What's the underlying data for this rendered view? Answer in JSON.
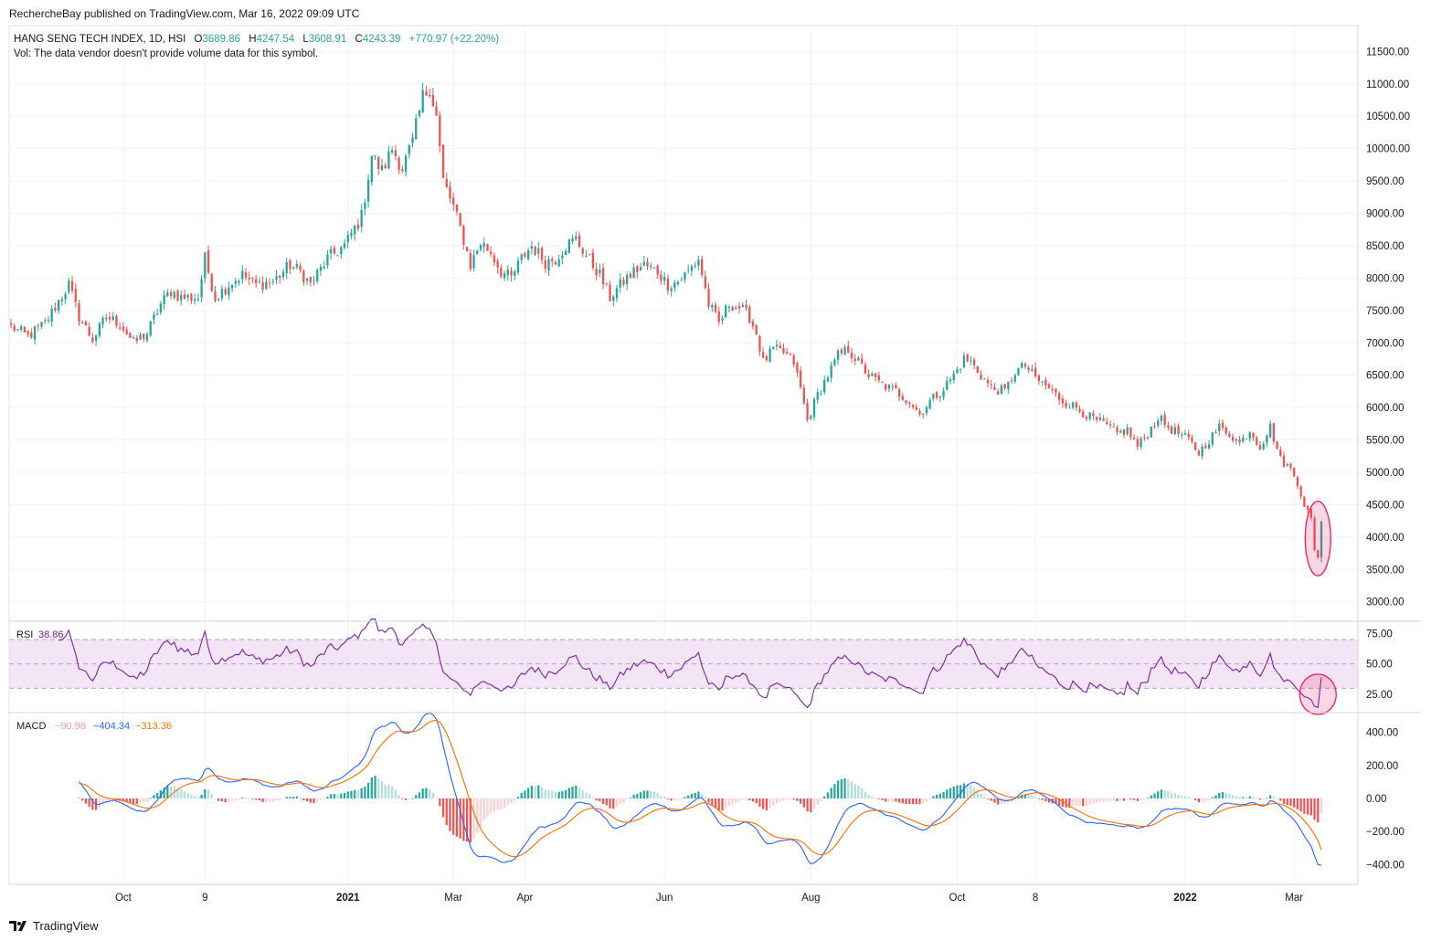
{
  "publisher_line": "RechercheBay published on TradingView.com, Mar 16, 2022 09:09 UTC",
  "brand": {
    "name": "TradingView",
    "logo_icon": "tradingview-logo-icon"
  },
  "colors": {
    "up": "#26a69a",
    "down": "#ef5350",
    "rsi_line": "#7b1fa2",
    "rsi_band": "#f3e5f5",
    "macd_line": "#2962ff",
    "signal_line": "#ff6d00",
    "hist_up_strong": "#26a69a",
    "hist_up_weak": "#b2dfdb",
    "hist_down_strong": "#ef5350",
    "hist_down_weak": "#ffcdd2",
    "highlight": "#e91e63"
  },
  "chart_data": [
    {
      "type": "candlestick",
      "symbol": "HANG SENG TECH INDEX",
      "interval": "1D",
      "exchange": "HSI",
      "legend": {
        "title": "HANG SENG TECH INDEX, 1D, HSI",
        "o_label": "O",
        "o": "3689.86",
        "h_label": "H",
        "h": "4247.54",
        "l_label": "L",
        "l": "3608.91",
        "c_label": "C",
        "c": "4243.39",
        "change": "+770.97 (+22.20%)"
      },
      "volume_note": "Vol: The data vendor doesn't provide volume data for this symbol.",
      "ylim": [
        2700,
        11900
      ],
      "y_ticks": [
        "3000.00",
        "3500.00",
        "4000.00",
        "4500.00",
        "5000.00",
        "5500.00",
        "6000.00",
        "6500.00",
        "7000.00",
        "7500.00",
        "8000.00",
        "8500.00",
        "9000.00",
        "9500.00",
        "10000.00",
        "10500.00",
        "11000.00",
        "11500.00"
      ],
      "x_ticks": [
        {
          "label": "Oct",
          "bar": 33,
          "bold": false
        },
        {
          "label": "9",
          "bar": 57,
          "bold": false
        },
        {
          "label": "2021",
          "bar": 99,
          "bold": true
        },
        {
          "label": "Mar",
          "bar": 130,
          "bold": false
        },
        {
          "label": "Apr",
          "bar": 151,
          "bold": false
        },
        {
          "label": "Jun",
          "bar": 192,
          "bold": false
        },
        {
          "label": "Aug",
          "bar": 235,
          "bold": false
        },
        {
          "label": "Oct",
          "bar": 278,
          "bold": false
        },
        {
          "label": "8",
          "bar": 301,
          "bold": false
        },
        {
          "label": "2022",
          "bar": 345,
          "bold": true
        },
        {
          "label": "Mar",
          "bar": 377,
          "bold": false
        }
      ],
      "close_anchors": [
        [
          0,
          7250
        ],
        [
          5,
          7100
        ],
        [
          10,
          7300
        ],
        [
          17,
          7900
        ],
        [
          20,
          7400
        ],
        [
          24,
          7050
        ],
        [
          28,
          7400
        ],
        [
          32,
          7300
        ],
        [
          36,
          7000
        ],
        [
          40,
          7150
        ],
        [
          44,
          7600
        ],
        [
          47,
          7800
        ],
        [
          50,
          7700
        ],
        [
          55,
          7700
        ],
        [
          57,
          8300
        ],
        [
          60,
          7700
        ],
        [
          64,
          7900
        ],
        [
          68,
          8050
        ],
        [
          72,
          7900
        ],
        [
          77,
          7950
        ],
        [
          82,
          8200
        ],
        [
          85,
          8100
        ],
        [
          88,
          7900
        ],
        [
          93,
          8300
        ],
        [
          98,
          8500
        ],
        [
          103,
          8950
        ],
        [
          106,
          9900
        ],
        [
          109,
          9650
        ],
        [
          112,
          10000
        ],
        [
          115,
          9700
        ],
        [
          118,
          10100
        ],
        [
          121,
          10800
        ],
        [
          123,
          10950
        ],
        [
          125,
          10500
        ],
        [
          127,
          9500
        ],
        [
          130,
          9100
        ],
        [
          133,
          8600
        ],
        [
          135,
          8200
        ],
        [
          138,
          8550
        ],
        [
          141,
          8400
        ],
        [
          144,
          8100
        ],
        [
          147,
          8000
        ],
        [
          150,
          8300
        ],
        [
          153,
          8500
        ],
        [
          157,
          8250
        ],
        [
          160,
          8300
        ],
        [
          163,
          8500
        ],
        [
          166,
          8600
        ],
        [
          169,
          8350
        ],
        [
          173,
          8050
        ],
        [
          176,
          7700
        ],
        [
          180,
          7950
        ],
        [
          183,
          8100
        ],
        [
          186,
          8200
        ],
        [
          190,
          8100
        ],
        [
          193,
          7900
        ],
        [
          196,
          7950
        ],
        [
          199,
          8100
        ],
        [
          202,
          8300
        ],
        [
          205,
          7600
        ],
        [
          208,
          7300
        ],
        [
          211,
          7600
        ],
        [
          214,
          7550
        ],
        [
          217,
          7400
        ],
        [
          219,
          7150
        ],
        [
          221,
          6700
        ],
        [
          224,
          6900
        ],
        [
          227,
          6850
        ],
        [
          230,
          6700
        ],
        [
          232,
          6300
        ],
        [
          234,
          5800
        ],
        [
          237,
          6200
        ],
        [
          240,
          6500
        ],
        [
          243,
          6800
        ],
        [
          246,
          6900
        ],
        [
          249,
          6700
        ],
        [
          252,
          6500
        ],
        [
          256,
          6350
        ],
        [
          260,
          6250
        ],
        [
          264,
          6100
        ],
        [
          267,
          5900
        ],
        [
          270,
          6100
        ],
        [
          274,
          6300
        ],
        [
          277,
          6500
        ],
        [
          280,
          6750
        ],
        [
          282,
          6700
        ],
        [
          285,
          6500
        ],
        [
          288,
          6300
        ],
        [
          292,
          6250
        ],
        [
          295,
          6550
        ],
        [
          298,
          6650
        ],
        [
          301,
          6450
        ],
        [
          305,
          6300
        ],
        [
          309,
          6100
        ],
        [
          313,
          6000
        ],
        [
          317,
          5850
        ],
        [
          321,
          5750
        ],
        [
          325,
          5600
        ],
        [
          328,
          5650
        ],
        [
          331,
          5400
        ],
        [
          334,
          5600
        ],
        [
          337,
          5850
        ],
        [
          340,
          5700
        ],
        [
          343,
          5600
        ],
        [
          346,
          5500
        ],
        [
          349,
          5300
        ],
        [
          352,
          5500
        ],
        [
          355,
          5700
        ],
        [
          358,
          5600
        ],
        [
          361,
          5450
        ],
        [
          364,
          5650
        ],
        [
          367,
          5400
        ],
        [
          370,
          5700
        ],
        [
          373,
          5200
        ],
        [
          376,
          5050
        ],
        [
          378,
          4850
        ],
        [
          380,
          4500
        ],
        [
          382,
          4300
        ],
        [
          383,
          3800
        ],
        [
          384,
          3690
        ],
        [
          385,
          4243
        ]
      ]
    },
    {
      "type": "line",
      "name": "RSI",
      "last_value": "38.86",
      "ylim": [
        10,
        85
      ],
      "y_ticks": [
        "25.00",
        "50.00",
        "75.00"
      ],
      "band": [
        30,
        70
      ],
      "mid": 50
    },
    {
      "type": "line+histogram",
      "name": "MACD",
      "legend_values": [
        "−90.98",
        "−404.34",
        "−313.36"
      ],
      "ylim": [
        -520,
        520
      ],
      "y_ticks": [
        "−400.00",
        "−200.00",
        "0.00",
        "200.00",
        "400.00"
      ],
      "params": {
        "fast": 12,
        "slow": 26,
        "signal": 9
      }
    }
  ]
}
